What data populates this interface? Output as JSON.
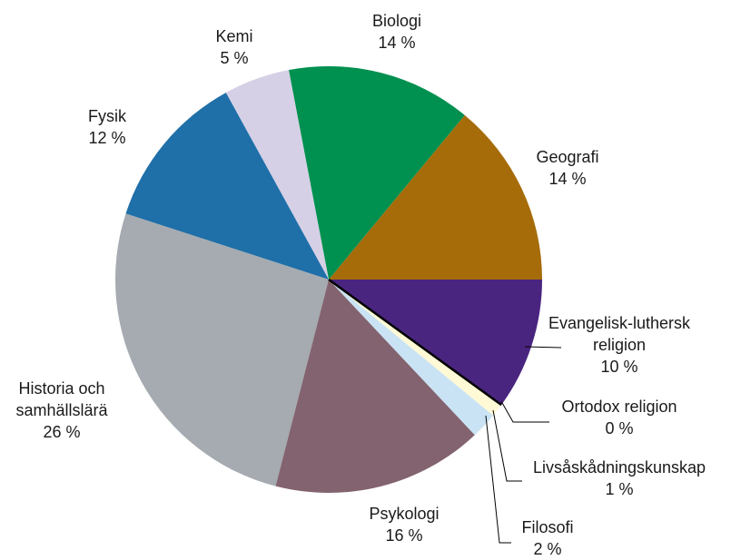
{
  "chart_data": {
    "type": "pie",
    "categories": [
      "Geografi",
      "Biologi",
      "Kemi",
      "Fysik",
      "Historia och samhällslärä",
      "Psykologi",
      "Filosofi",
      "Livsåskådningskunskap",
      "Ortodox religion",
      "Evangelisk-luthersk religion"
    ],
    "values": [
      14,
      14,
      5,
      12,
      26,
      16,
      2,
      1,
      0,
      10
    ],
    "value_labels": [
      "14 %",
      "14 %",
      "5 %",
      "12 %",
      "26 %",
      "16 %",
      "2 %",
      "1 %",
      "0 %",
      "10 %"
    ],
    "colors": [
      "#a66c0a",
      "#00904f",
      "#d5d0e6",
      "#1f6fa8",
      "#a5abb0",
      "#83636f",
      "#c9e3f4",
      "#fff9d6",
      "#000000",
      "#4a2580"
    ]
  }
}
